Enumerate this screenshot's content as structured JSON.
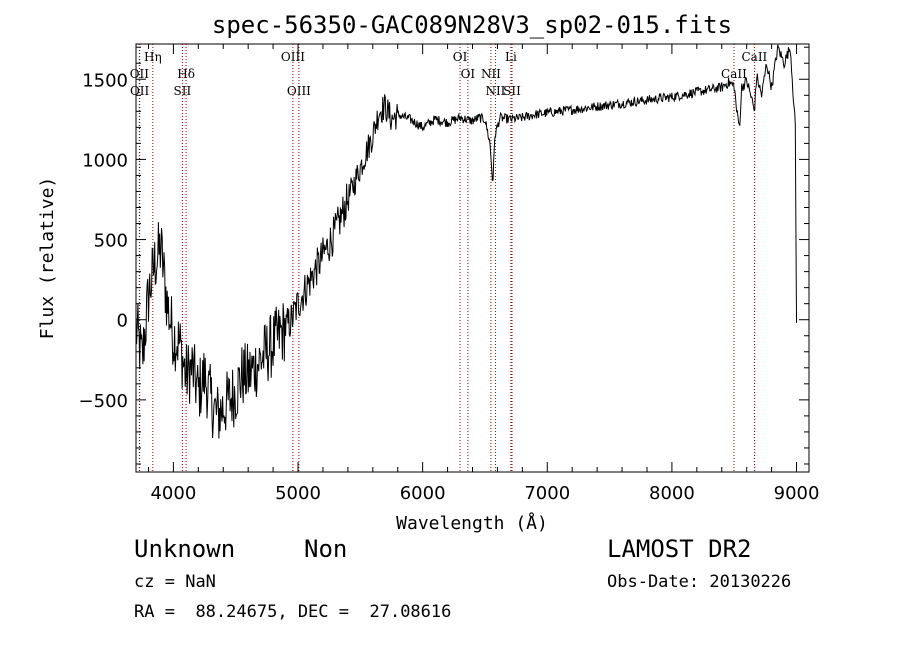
{
  "header": {
    "title": "spec-56350-GAC089N28V3_sp02-015.fits"
  },
  "info": {
    "class": "Unknown",
    "subclass": "Non",
    "survey": "LAMOST DR2",
    "cz_label": "cz",
    "cz_value": "NaN",
    "obs_date_label": "Obs-Date:",
    "obs_date_value": "20130226",
    "ra_label": "RA",
    "ra_value": "88.24675",
    "dec_label": "DEC",
    "dec_value": "27.08616"
  },
  "chart_data": {
    "type": "line",
    "title": "spec-56350-GAC089N28V3_sp02-015.fits",
    "xlabel": "Wavelength (Å)",
    "ylabel": "Flux (relative)",
    "xlim": [
      3700,
      9100
    ],
    "ylim": [
      -950,
      1720
    ],
    "x_ticks": [
      4000,
      5000,
      6000,
      7000,
      8000,
      9000
    ],
    "x_tick_labels": [
      "4000",
      "5000",
      "6000",
      "7000",
      "8000",
      "9000"
    ],
    "y_ticks": [
      -500,
      0,
      500,
      1000,
      1500
    ],
    "y_tick_labels": [
      "−500",
      "0",
      "500",
      "1000",
      "1500"
    ],
    "grid": false,
    "legend": "none",
    "line_color": "#000000",
    "marker_color": "#8b0000",
    "spectrum": {
      "name": "Flux",
      "x": [
        3700,
        3750,
        3800,
        3850,
        3900,
        3950,
        4000,
        4050,
        4100,
        4150,
        4200,
        4250,
        4300,
        4350,
        4400,
        4450,
        4500,
        4550,
        4600,
        4650,
        4700,
        4750,
        4800,
        4850,
        4900,
        4950,
        5000,
        5100,
        5200,
        5300,
        5400,
        5500,
        5600,
        5650,
        5700,
        5750,
        5800,
        5900,
        6000,
        6100,
        6200,
        6300,
        6400,
        6450,
        6500,
        6540,
        6563,
        6580,
        6620,
        6700,
        6800,
        6900,
        7000,
        7200,
        7400,
        7600,
        7800,
        8000,
        8200,
        8400,
        8450,
        8500,
        8520,
        8542,
        8560,
        8600,
        8640,
        8662,
        8680,
        8720,
        8760,
        8800,
        8850,
        8900,
        8950,
        8990,
        9000
      ],
      "y": [
        -50,
        -250,
        150,
        350,
        450,
        100,
        -100,
        -150,
        -350,
        -300,
        -450,
        -350,
        -500,
        -600,
        -550,
        -500,
        -450,
        -350,
        -350,
        -300,
        -250,
        -200,
        -150,
        -100,
        -50,
        0,
        100,
        250,
        400,
        550,
        750,
        950,
        1150,
        1300,
        1330,
        1250,
        1280,
        1250,
        1200,
        1250,
        1230,
        1260,
        1240,
        1260,
        1250,
        1100,
        850,
        1150,
        1260,
        1250,
        1260,
        1280,
        1290,
        1310,
        1330,
        1350,
        1370,
        1390,
        1420,
        1450,
        1480,
        1460,
        1300,
        1200,
        1450,
        1490,
        1380,
        1300,
        1520,
        1400,
        1600,
        1450,
        1700,
        1600,
        1700,
        1200,
        -20
      ]
    },
    "lines": [
      {
        "label": "Hη",
        "x": 3835,
        "row": 0
      },
      {
        "label": "OII",
        "x": 3727,
        "row": 1
      },
      {
        "label": "OII",
        "x": 3729,
        "row": 2
      },
      {
        "label": "Hδ",
        "x": 4102,
        "row": 1
      },
      {
        "label": "SII",
        "x": 4072,
        "row": 2
      },
      {
        "label": "OIII",
        "x": 4959,
        "row": 0
      },
      {
        "label": "OIII",
        "x": 5007,
        "row": 2
      },
      {
        "label": "OI",
        "x": 6300,
        "row": 0
      },
      {
        "label": "OI",
        "x": 6363,
        "row": 1
      },
      {
        "label": "NII",
        "x": 6548,
        "row": 1
      },
      {
        "label": "NII",
        "x": 6584,
        "row": 2
      },
      {
        "label": "Li",
        "x": 6708,
        "row": 0
      },
      {
        "label": "SII",
        "x": 6717,
        "row": 2
      },
      {
        "label": "CaII",
        "x": 8498,
        "row": 1
      },
      {
        "label": "CaII",
        "x": 8662,
        "row": 0
      }
    ]
  }
}
